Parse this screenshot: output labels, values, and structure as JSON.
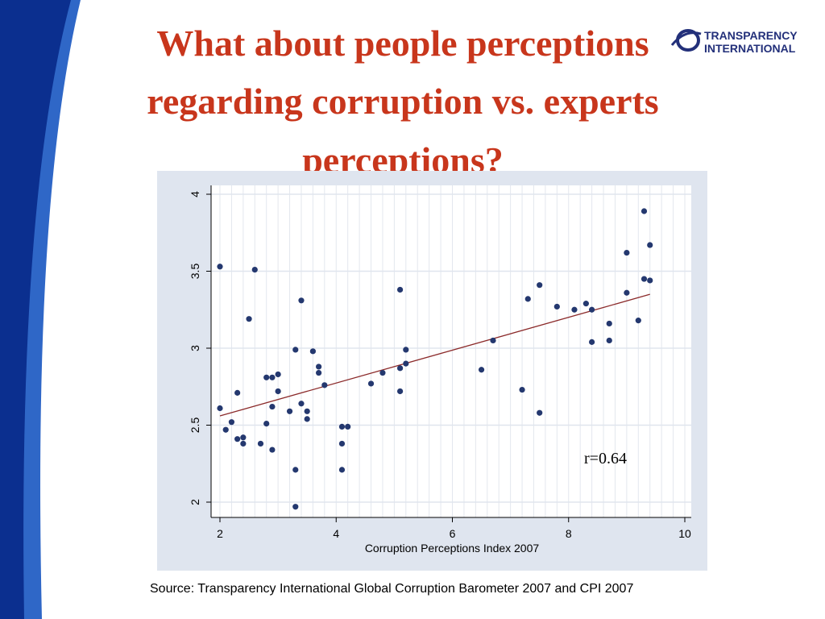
{
  "slide": {
    "title_lines": [
      "What about people perceptions",
      "regarding corruption vs. experts",
      "perceptions?"
    ],
    "logo": {
      "line1": "TRANSPARENCY",
      "line2": "INTERNATIONAL",
      "icon": "globe-swoosh-icon"
    },
    "source": "Source: Transparency International Global Corruption Barometer 2007 and CPI 2007",
    "colors": {
      "title": "#c8361c",
      "band_dark": "#0b2f8f",
      "band_light": "#2f67c7",
      "panel": "#dfe5ef",
      "points": "#24386f",
      "fit_line": "#8b2a2a",
      "logo": "#23307a"
    }
  },
  "chart_data": {
    "type": "scatter",
    "title": "",
    "xlabel": "Corruption Perceptions Index 2007",
    "ylabel": "",
    "xlim": [
      2,
      10
    ],
    "ylim": [
      2,
      4
    ],
    "xticks": [
      "2",
      "4",
      "6",
      "8",
      "10"
    ],
    "yticks": [
      "2",
      "2.5",
      "3",
      "3.5",
      "4"
    ],
    "grid": {
      "x_minor": true,
      "y_major": true
    },
    "annotation": "r=0.64",
    "fit_line": {
      "x": [
        2.0,
        9.4
      ],
      "y": [
        2.56,
        3.35
      ]
    },
    "points": [
      {
        "x": 2.0,
        "y": 3.53
      },
      {
        "x": 2.0,
        "y": 2.61
      },
      {
        "x": 2.1,
        "y": 2.47
      },
      {
        "x": 2.2,
        "y": 2.52
      },
      {
        "x": 2.3,
        "y": 2.71
      },
      {
        "x": 2.3,
        "y": 2.41
      },
      {
        "x": 2.4,
        "y": 2.42
      },
      {
        "x": 2.4,
        "y": 2.38
      },
      {
        "x": 2.5,
        "y": 3.19
      },
      {
        "x": 2.6,
        "y": 3.51
      },
      {
        "x": 2.7,
        "y": 2.38
      },
      {
        "x": 2.8,
        "y": 2.81
      },
      {
        "x": 2.8,
        "y": 2.51
      },
      {
        "x": 2.9,
        "y": 2.81
      },
      {
        "x": 2.9,
        "y": 2.62
      },
      {
        "x": 2.9,
        "y": 2.34
      },
      {
        "x": 3.0,
        "y": 2.83
      },
      {
        "x": 3.0,
        "y": 2.72
      },
      {
        "x": 3.2,
        "y": 2.59
      },
      {
        "x": 3.3,
        "y": 2.99
      },
      {
        "x": 3.3,
        "y": 2.21
      },
      {
        "x": 3.3,
        "y": 1.97
      },
      {
        "x": 3.4,
        "y": 3.31
      },
      {
        "x": 3.4,
        "y": 2.64
      },
      {
        "x": 3.5,
        "y": 2.59
      },
      {
        "x": 3.5,
        "y": 2.54
      },
      {
        "x": 3.6,
        "y": 2.98
      },
      {
        "x": 3.7,
        "y": 2.88
      },
      {
        "x": 3.7,
        "y": 2.84
      },
      {
        "x": 3.8,
        "y": 2.76
      },
      {
        "x": 4.1,
        "y": 2.49
      },
      {
        "x": 4.1,
        "y": 2.38
      },
      {
        "x": 4.1,
        "y": 2.21
      },
      {
        "x": 4.2,
        "y": 2.49
      },
      {
        "x": 4.6,
        "y": 2.77
      },
      {
        "x": 4.8,
        "y": 2.84
      },
      {
        "x": 5.1,
        "y": 3.38
      },
      {
        "x": 5.1,
        "y": 2.87
      },
      {
        "x": 5.1,
        "y": 2.72
      },
      {
        "x": 5.2,
        "y": 2.99
      },
      {
        "x": 5.2,
        "y": 2.9
      },
      {
        "x": 6.5,
        "y": 2.86
      },
      {
        "x": 6.7,
        "y": 3.05
      },
      {
        "x": 7.2,
        "y": 2.73
      },
      {
        "x": 7.3,
        "y": 3.32
      },
      {
        "x": 7.5,
        "y": 3.41
      },
      {
        "x": 7.5,
        "y": 2.58
      },
      {
        "x": 7.8,
        "y": 3.27
      },
      {
        "x": 8.1,
        "y": 3.25
      },
      {
        "x": 8.3,
        "y": 3.29
      },
      {
        "x": 8.4,
        "y": 3.25
      },
      {
        "x": 8.4,
        "y": 3.04
      },
      {
        "x": 8.7,
        "y": 3.16
      },
      {
        "x": 8.7,
        "y": 3.05
      },
      {
        "x": 9.0,
        "y": 3.62
      },
      {
        "x": 9.0,
        "y": 3.36
      },
      {
        "x": 9.2,
        "y": 3.18
      },
      {
        "x": 9.3,
        "y": 3.89
      },
      {
        "x": 9.3,
        "y": 3.45
      },
      {
        "x": 9.4,
        "y": 3.67
      },
      {
        "x": 9.4,
        "y": 3.44
      }
    ]
  }
}
